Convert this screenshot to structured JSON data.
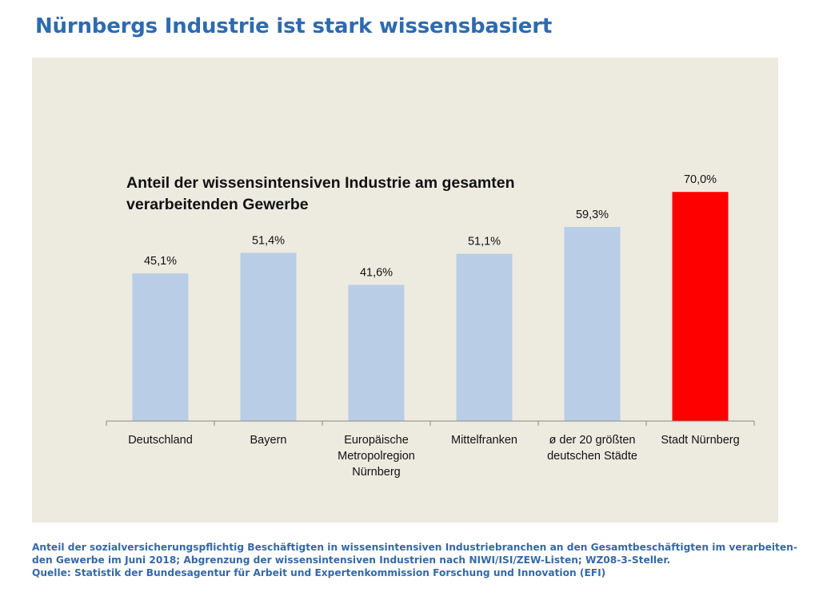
{
  "page": {
    "title": "Nürnbergs Industrie ist stark wissensbasiert",
    "footnote": [
      "Anteil der sozialversicherungspflichtig Beschäftigten in wissensintensiven Industriebranchen an den Gesamtbeschäftigten im verarbeiten-",
      "den Gewerbe im Juni 2018; Abgrenzung der wissensintensiven Industrien nach NIWI/ISI/ZEW-Listen; WZ08-3-Steller.",
      "Quelle:  Statistik der Bundesagentur für Arbeit  und  Expertenkommission Forschung und Innovation (EFI)"
    ]
  },
  "chart_data": {
    "type": "bar",
    "title_lines": [
      "Anteil der wissensintensiven Industrie am gesamten",
      "verarbeitenden Gewerbe"
    ],
    "categories": [
      [
        "Deutschland"
      ],
      [
        "Bayern"
      ],
      [
        "Europäische",
        "Metropolregion",
        "Nürnberg"
      ],
      [
        "Mittelfranken"
      ],
      [
        "ø der 20 größten",
        "deutschen Städte"
      ],
      [
        "Stadt Nürnberg"
      ]
    ],
    "values": [
      45.1,
      51.4,
      41.6,
      51.1,
      59.3,
      70.0
    ],
    "data_labels": [
      "45,1%",
      "51,4%",
      "41,6%",
      "51,1%",
      "59,3%",
      "70,0%"
    ],
    "colors": [
      "#b9cde6",
      "#b9cde6",
      "#b9cde6",
      "#b9cde6",
      "#b9cde6",
      "#ff0000"
    ],
    "ylim": [
      0,
      72.5
    ],
    "grid": false,
    "legend": "none",
    "xlabel": "",
    "ylabel": ""
  }
}
